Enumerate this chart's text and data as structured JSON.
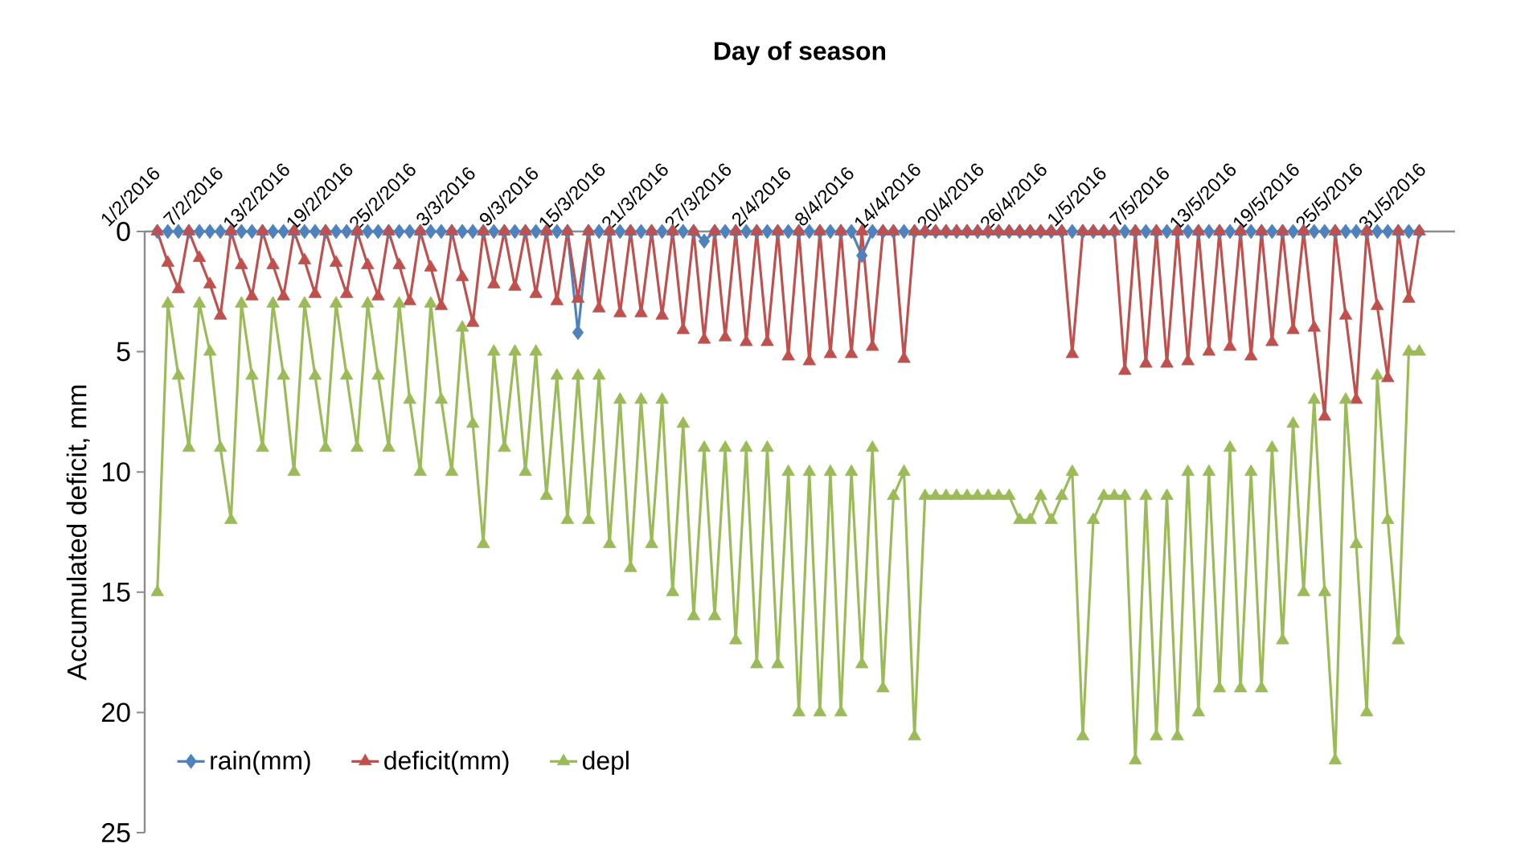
{
  "chart_data": {
    "type": "line",
    "title": "Day of season",
    "ylabel": "Accumulated deficit, mm",
    "categories": [
      "1/2/2016",
      null,
      null,
      null,
      null,
      null,
      "7/2/2016",
      null,
      null,
      null,
      null,
      null,
      "13/2/2016",
      null,
      null,
      null,
      null,
      null,
      "19/2/2016",
      null,
      null,
      null,
      null,
      null,
      "25/2/2016",
      null,
      null,
      null,
      null,
      null,
      "3/3/2016",
      null,
      null,
      null,
      null,
      null,
      "9/3/2016",
      null,
      null,
      null,
      null,
      null,
      "15/3/2016",
      null,
      null,
      null,
      null,
      null,
      "21/3/2016",
      null,
      null,
      null,
      null,
      null,
      "27/3/2016",
      null,
      null,
      null,
      null,
      null,
      "2/4/2016",
      null,
      null,
      null,
      null,
      null,
      "8/4/2016",
      null,
      null,
      null,
      null,
      null,
      "14/4/2016",
      null,
      null,
      null,
      null,
      null,
      "20/4/2016",
      null,
      null,
      null,
      null,
      null,
      "26/4/2016",
      null,
      null,
      null,
      null,
      null,
      "1/5/2016",
      null,
      null,
      null,
      null,
      null,
      "7/5/2016",
      null,
      null,
      null,
      null,
      null,
      "13/5/2016",
      null,
      null,
      null,
      null,
      null,
      "19/5/2016",
      null,
      null,
      null,
      null,
      null,
      "25/5/2016",
      null,
      null,
      null,
      null,
      null,
      "31/5/2016"
    ],
    "series": [
      {
        "name": "rain(mm)",
        "color": "#4f81bd",
        "marker": "diamond",
        "values": [
          0,
          0,
          0,
          0,
          0,
          0,
          0,
          0,
          0,
          0,
          0,
          0,
          0,
          0,
          0,
          0,
          0,
          0,
          0,
          0,
          0,
          0,
          0,
          0,
          0,
          0,
          0,
          0,
          0,
          0,
          0,
          0,
          0,
          0,
          0,
          0,
          0,
          0,
          0,
          0,
          4.2,
          0,
          0,
          0,
          0,
          0,
          0,
          0,
          0,
          0,
          0,
          0,
          0.4,
          0,
          0,
          0,
          0,
          0,
          0,
          0,
          0,
          0,
          0,
          0,
          0,
          0,
          0,
          1.0,
          0,
          0,
          0,
          0,
          0,
          0,
          0,
          0,
          0,
          0,
          0,
          0,
          0,
          0,
          0,
          0,
          0,
          0,
          0,
          0,
          0,
          0,
          0,
          0,
          0,
          0,
          0,
          0,
          0,
          0,
          0,
          0,
          0,
          0,
          0,
          0,
          0,
          0,
          0,
          0,
          0,
          0,
          0,
          0,
          0,
          0,
          0,
          0,
          0,
          0,
          0,
          0,
          0
        ]
      },
      {
        "name": "deficit(mm)",
        "color": "#c0504d",
        "marker": "triangle",
        "values": [
          0,
          1.3,
          2.4,
          0,
          1.1,
          2.2,
          3.5,
          0,
          1.4,
          2.7,
          0,
          1.4,
          2.7,
          0,
          1.2,
          2.6,
          0,
          1.3,
          2.6,
          0,
          1.4,
          2.7,
          0,
          1.4,
          2.9,
          0,
          1.5,
          3.1,
          0,
          1.9,
          3.8,
          0,
          2.2,
          0,
          2.3,
          0,
          2.6,
          0,
          2.9,
          0,
          2.8,
          0,
          3.2,
          0,
          3.4,
          0,
          3.4,
          0,
          3.5,
          0,
          4.1,
          0,
          4.5,
          0,
          4.4,
          0,
          4.6,
          0,
          4.6,
          0,
          5.2,
          0,
          5.4,
          0,
          5.1,
          0,
          5.1,
          0,
          4.8,
          0,
          0,
          5.3,
          0,
          0,
          0,
          0,
          0,
          0,
          0,
          0,
          0,
          0,
          0,
          0,
          0,
          0,
          0,
          5.1,
          0,
          0,
          0,
          0,
          5.8,
          0,
          5.5,
          0,
          5.5,
          0,
          5.4,
          0,
          5.0,
          0,
          4.8,
          0,
          5.2,
          0,
          4.6,
          0,
          4.1,
          0,
          4.0,
          7.7,
          0,
          3.5,
          7.0,
          0,
          3.1,
          6.1,
          0,
          2.8,
          0
        ]
      },
      {
        "name": "depl",
        "color": "#9bbb59",
        "marker": "triangle",
        "values": [
          15,
          3,
          6,
          9,
          3,
          5,
          9,
          12,
          3,
          6,
          9,
          3,
          6,
          10,
          3,
          6,
          9,
          3,
          6,
          9,
          3,
          6,
          9,
          3,
          7,
          10,
          3,
          7,
          10,
          4,
          8,
          13,
          5,
          9,
          5,
          10,
          5,
          11,
          6,
          12,
          6,
          12,
          6,
          13,
          7,
          14,
          7,
          13,
          7,
          15,
          8,
          16,
          9,
          16,
          9,
          17,
          9,
          18,
          9,
          18,
          10,
          20,
          10,
          20,
          10,
          20,
          10,
          18,
          9,
          19,
          11,
          10,
          21,
          11,
          11,
          11,
          11,
          11,
          11,
          11,
          11,
          11,
          12,
          12,
          11,
          12,
          11,
          10,
          21,
          12,
          11,
          11,
          11,
          22,
          11,
          21,
          11,
          21,
          10,
          20,
          10,
          19,
          9,
          19,
          10,
          19,
          9,
          17,
          8,
          15,
          7,
          15,
          22,
          7,
          13,
          20,
          6,
          12,
          17,
          5,
          5
        ]
      }
    ],
    "ylim": [
      25,
      0
    ],
    "yticks": [
      0,
      5,
      10,
      15,
      20,
      25
    ],
    "legend": "bottom left"
  }
}
